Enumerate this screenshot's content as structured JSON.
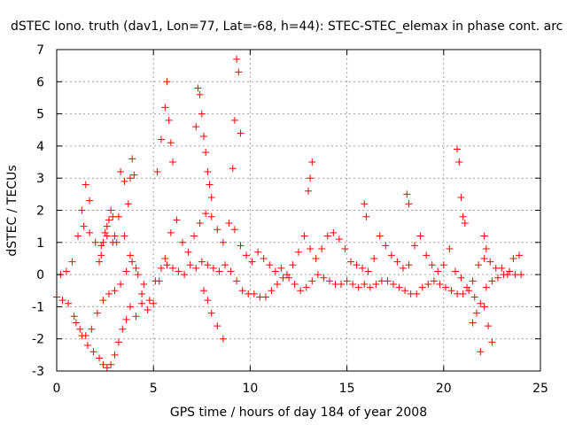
{
  "colors": {
    "series": "#ff0000",
    "grid": "#a0a0a0",
    "axis": "#000000",
    "background": "#ffffff"
  },
  "chart_data": {
    "type": "scatter",
    "title": "dSTEC Iono. truth (dav1, Lon=77, Lat=-68, h=44): STEC-STEC_elemax in phase cont. arc",
    "xlabel": "GPS time / hours of day 184 of year 2008",
    "ylabel": "dSTEC  / TECUs",
    "xlim": [
      0,
      25
    ],
    "ylim": [
      -3,
      7
    ],
    "xticks": [
      0,
      5,
      10,
      15,
      20,
      25
    ],
    "yticks": [
      -3,
      -2,
      -1,
      0,
      1,
      2,
      3,
      4,
      5,
      6,
      7
    ],
    "grid": true,
    "marker": "+",
    "series": [
      {
        "name": "STEC-STEC_elemax",
        "color": "#ff0000",
        "x": [
          0.0,
          0.3,
          0.6,
          0.9,
          1.2,
          1.5,
          1.8,
          2.1,
          2.4,
          2.7,
          3.0,
          3.3,
          3.6,
          3.9,
          4.2,
          4.5,
          4.8,
          5.1,
          5.4,
          5.7,
          6.0,
          6.3,
          6.6,
          6.9,
          7.2,
          7.5,
          7.8,
          8.1,
          8.4,
          8.7,
          9.0,
          9.3,
          9.6,
          9.9,
          10.2,
          10.5,
          10.8,
          11.1,
          11.4,
          11.7,
          12.0,
          12.3,
          12.6,
          12.9,
          13.2,
          13.5,
          13.8,
          14.1,
          14.4,
          14.7,
          15.0,
          15.3,
          15.6,
          15.9,
          16.2,
          16.5,
          16.8,
          17.1,
          17.4,
          17.7,
          18.0,
          18.3,
          18.6,
          18.9,
          19.2,
          19.5,
          19.8,
          20.1,
          20.4,
          20.7,
          21.0,
          21.3,
          21.6,
          21.9,
          22.2,
          22.5,
          22.8,
          23.1,
          23.4,
          23.7,
          24.0,
          0.2,
          0.5,
          0.8,
          1.1,
          1.4,
          1.7,
          2.0,
          2.3,
          2.6,
          2.9,
          3.2,
          3.5,
          3.8,
          4.1,
          4.4,
          4.7,
          5.0,
          5.3,
          5.6,
          5.9,
          6.2,
          6.5,
          6.8,
          7.1,
          7.4,
          7.7,
          8.0,
          8.3,
          8.6,
          8.9,
          9.2,
          9.5,
          9.8,
          10.1,
          10.4,
          10.7,
          11.0,
          11.3,
          11.6,
          11.9,
          12.2,
          12.5,
          12.8,
          13.1,
          13.4,
          13.7,
          14.0,
          14.3,
          14.6,
          14.9,
          15.2,
          15.5,
          15.8,
          16.1,
          16.4,
          16.7,
          17.0,
          17.3,
          17.6,
          17.9,
          18.2,
          18.5,
          18.8,
          19.1,
          19.4,
          19.7,
          20.0,
          20.3,
          20.6,
          20.9,
          21.2,
          21.5,
          21.8,
          22.1,
          22.4,
          22.7,
          23.0,
          23.3,
          23.6,
          23.9,
          1.3,
          1.5,
          1.7,
          2.2,
          2.3,
          2.4,
          2.5,
          2.6,
          2.7,
          2.8,
          2.9,
          3.0,
          3.1,
          3.3,
          3.5,
          3.7,
          3.8,
          3.9,
          4.0,
          5.2,
          5.4,
          5.6,
          5.7,
          5.8,
          5.9,
          6.0,
          7.2,
          7.3,
          7.4,
          7.5,
          7.6,
          7.7,
          7.8,
          7.9,
          8.0,
          9.1,
          9.2,
          9.3,
          9.4,
          9.5,
          13.0,
          13.1,
          13.2,
          15.9,
          16.0,
          18.1,
          18.2,
          20.7,
          20.8,
          20.9,
          21.0,
          21.1,
          22.1,
          22.2,
          1.0,
          1.3,
          1.6,
          1.9,
          2.2,
          2.4,
          2.6,
          2.8,
          3.0,
          3.2,
          3.4,
          3.6,
          3.8,
          4.1,
          4.4,
          7.6,
          7.8,
          8.0,
          8.3,
          8.6,
          21.5,
          21.7,
          21.9,
          22.1,
          22.3,
          22.5
        ],
        "y": [
          -0.7,
          -0.8,
          -0.9,
          -1.3,
          -1.7,
          -1.9,
          -1.7,
          -1.2,
          -0.8,
          -0.6,
          -0.5,
          -0.3,
          0.1,
          0.4,
          0.0,
          -0.3,
          -0.8,
          -0.2,
          0.2,
          0.3,
          0.2,
          0.1,
          0.0,
          0.3,
          0.2,
          0.4,
          0.3,
          0.2,
          0.1,
          0.3,
          0.1,
          -0.2,
          -0.5,
          -0.6,
          -0.6,
          -0.7,
          -0.7,
          -0.5,
          -0.3,
          -0.1,
          -0.1,
          -0.3,
          -0.5,
          -0.4,
          -0.2,
          0.0,
          -0.1,
          -0.2,
          -0.3,
          -0.3,
          -0.2,
          -0.3,
          -0.4,
          -0.3,
          -0.4,
          -0.3,
          -0.2,
          -0.2,
          -0.3,
          -0.4,
          -0.5,
          -0.6,
          -0.6,
          -0.4,
          -0.3,
          -0.2,
          -0.3,
          -0.4,
          -0.5,
          -0.6,
          -0.6,
          -0.5,
          -0.7,
          -0.9,
          -0.4,
          -0.2,
          -0.1,
          0.0,
          0.1,
          0.0,
          0.0,
          0.0,
          0.1,
          0.4,
          1.2,
          1.5,
          1.3,
          1.0,
          0.9,
          1.2,
          1.0,
          1.8,
          1.2,
          0.6,
          0.2,
          -0.6,
          -1.1,
          -0.9,
          -0.2,
          0.5,
          1.3,
          1.7,
          1.0,
          0.7,
          1.2,
          1.6,
          1.9,
          1.8,
          1.4,
          1.0,
          1.6,
          1.4,
          0.9,
          0.6,
          0.4,
          0.7,
          0.5,
          0.3,
          0.1,
          0.2,
          0.0,
          0.3,
          0.7,
          1.2,
          0.8,
          0.5,
          0.8,
          1.2,
          1.3,
          1.1,
          0.8,
          0.4,
          0.3,
          0.2,
          0.1,
          0.5,
          1.2,
          0.9,
          0.6,
          0.4,
          0.2,
          0.3,
          0.9,
          1.2,
          0.6,
          0.3,
          0.1,
          0.3,
          0.8,
          0.1,
          -0.1,
          -0.4,
          -0.2,
          0.3,
          0.5,
          0.4,
          0.2,
          0.2,
          0.0,
          0.5,
          0.6,
          2.0,
          2.8,
          2.3,
          0.4,
          0.6,
          1.0,
          1.3,
          1.5,
          1.7,
          2.0,
          1.8,
          1.2,
          1.0,
          3.2,
          2.9,
          2.2,
          3.0,
          3.6,
          3.1,
          3.2,
          4.2,
          5.2,
          6.0,
          4.8,
          4.1,
          3.5,
          4.6,
          5.8,
          5.6,
          5.0,
          4.3,
          3.8,
          3.2,
          2.8,
          2.4,
          3.3,
          4.8,
          6.7,
          6.3,
          4.4,
          2.6,
          3.0,
          3.5,
          2.2,
          1.8,
          2.5,
          2.2,
          3.9,
          3.5,
          2.4,
          1.8,
          1.6,
          1.2,
          0.8,
          -1.5,
          -1.9,
          -2.2,
          -2.4,
          -2.6,
          -2.8,
          -2.9,
          -2.8,
          -2.5,
          -2.1,
          -1.7,
          -1.4,
          -1.0,
          -1.3,
          -0.9,
          -0.5,
          -0.8,
          -1.2,
          -1.6,
          -2.0,
          -1.5,
          -1.2,
          -2.4,
          -1.0,
          -1.6,
          -2.1
        ]
      }
    ]
  }
}
